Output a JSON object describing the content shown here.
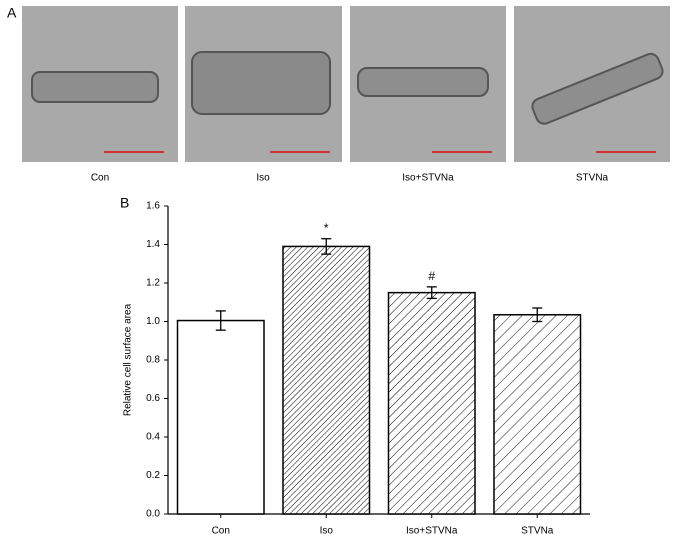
{
  "panel_a": {
    "label": "A",
    "captions": [
      "Con",
      "Iso",
      "Iso+STVNa",
      "STVNa"
    ]
  },
  "chart_data": {
    "type": "bar",
    "label": "B",
    "y_label": "Relative cell surface area",
    "categories": [
      "Con",
      "Iso",
      "Iso+STVNa",
      "STVNa"
    ],
    "values": [
      1.005,
      1.39,
      1.15,
      1.035
    ],
    "errors": [
      0.05,
      0.04,
      0.03,
      0.035
    ],
    "annotations": [
      null,
      "*",
      "#",
      null
    ],
    "color": "#ffffff",
    "ylim": [
      0,
      1.6
    ],
    "yticks": [
      {
        "value": 0,
        "label": "0.0"
      },
      0.2,
      0.4,
      0.6,
      0.8,
      {
        "value": 1,
        "label": "1.0"
      },
      1.2,
      1.4,
      1.6
    ]
  }
}
